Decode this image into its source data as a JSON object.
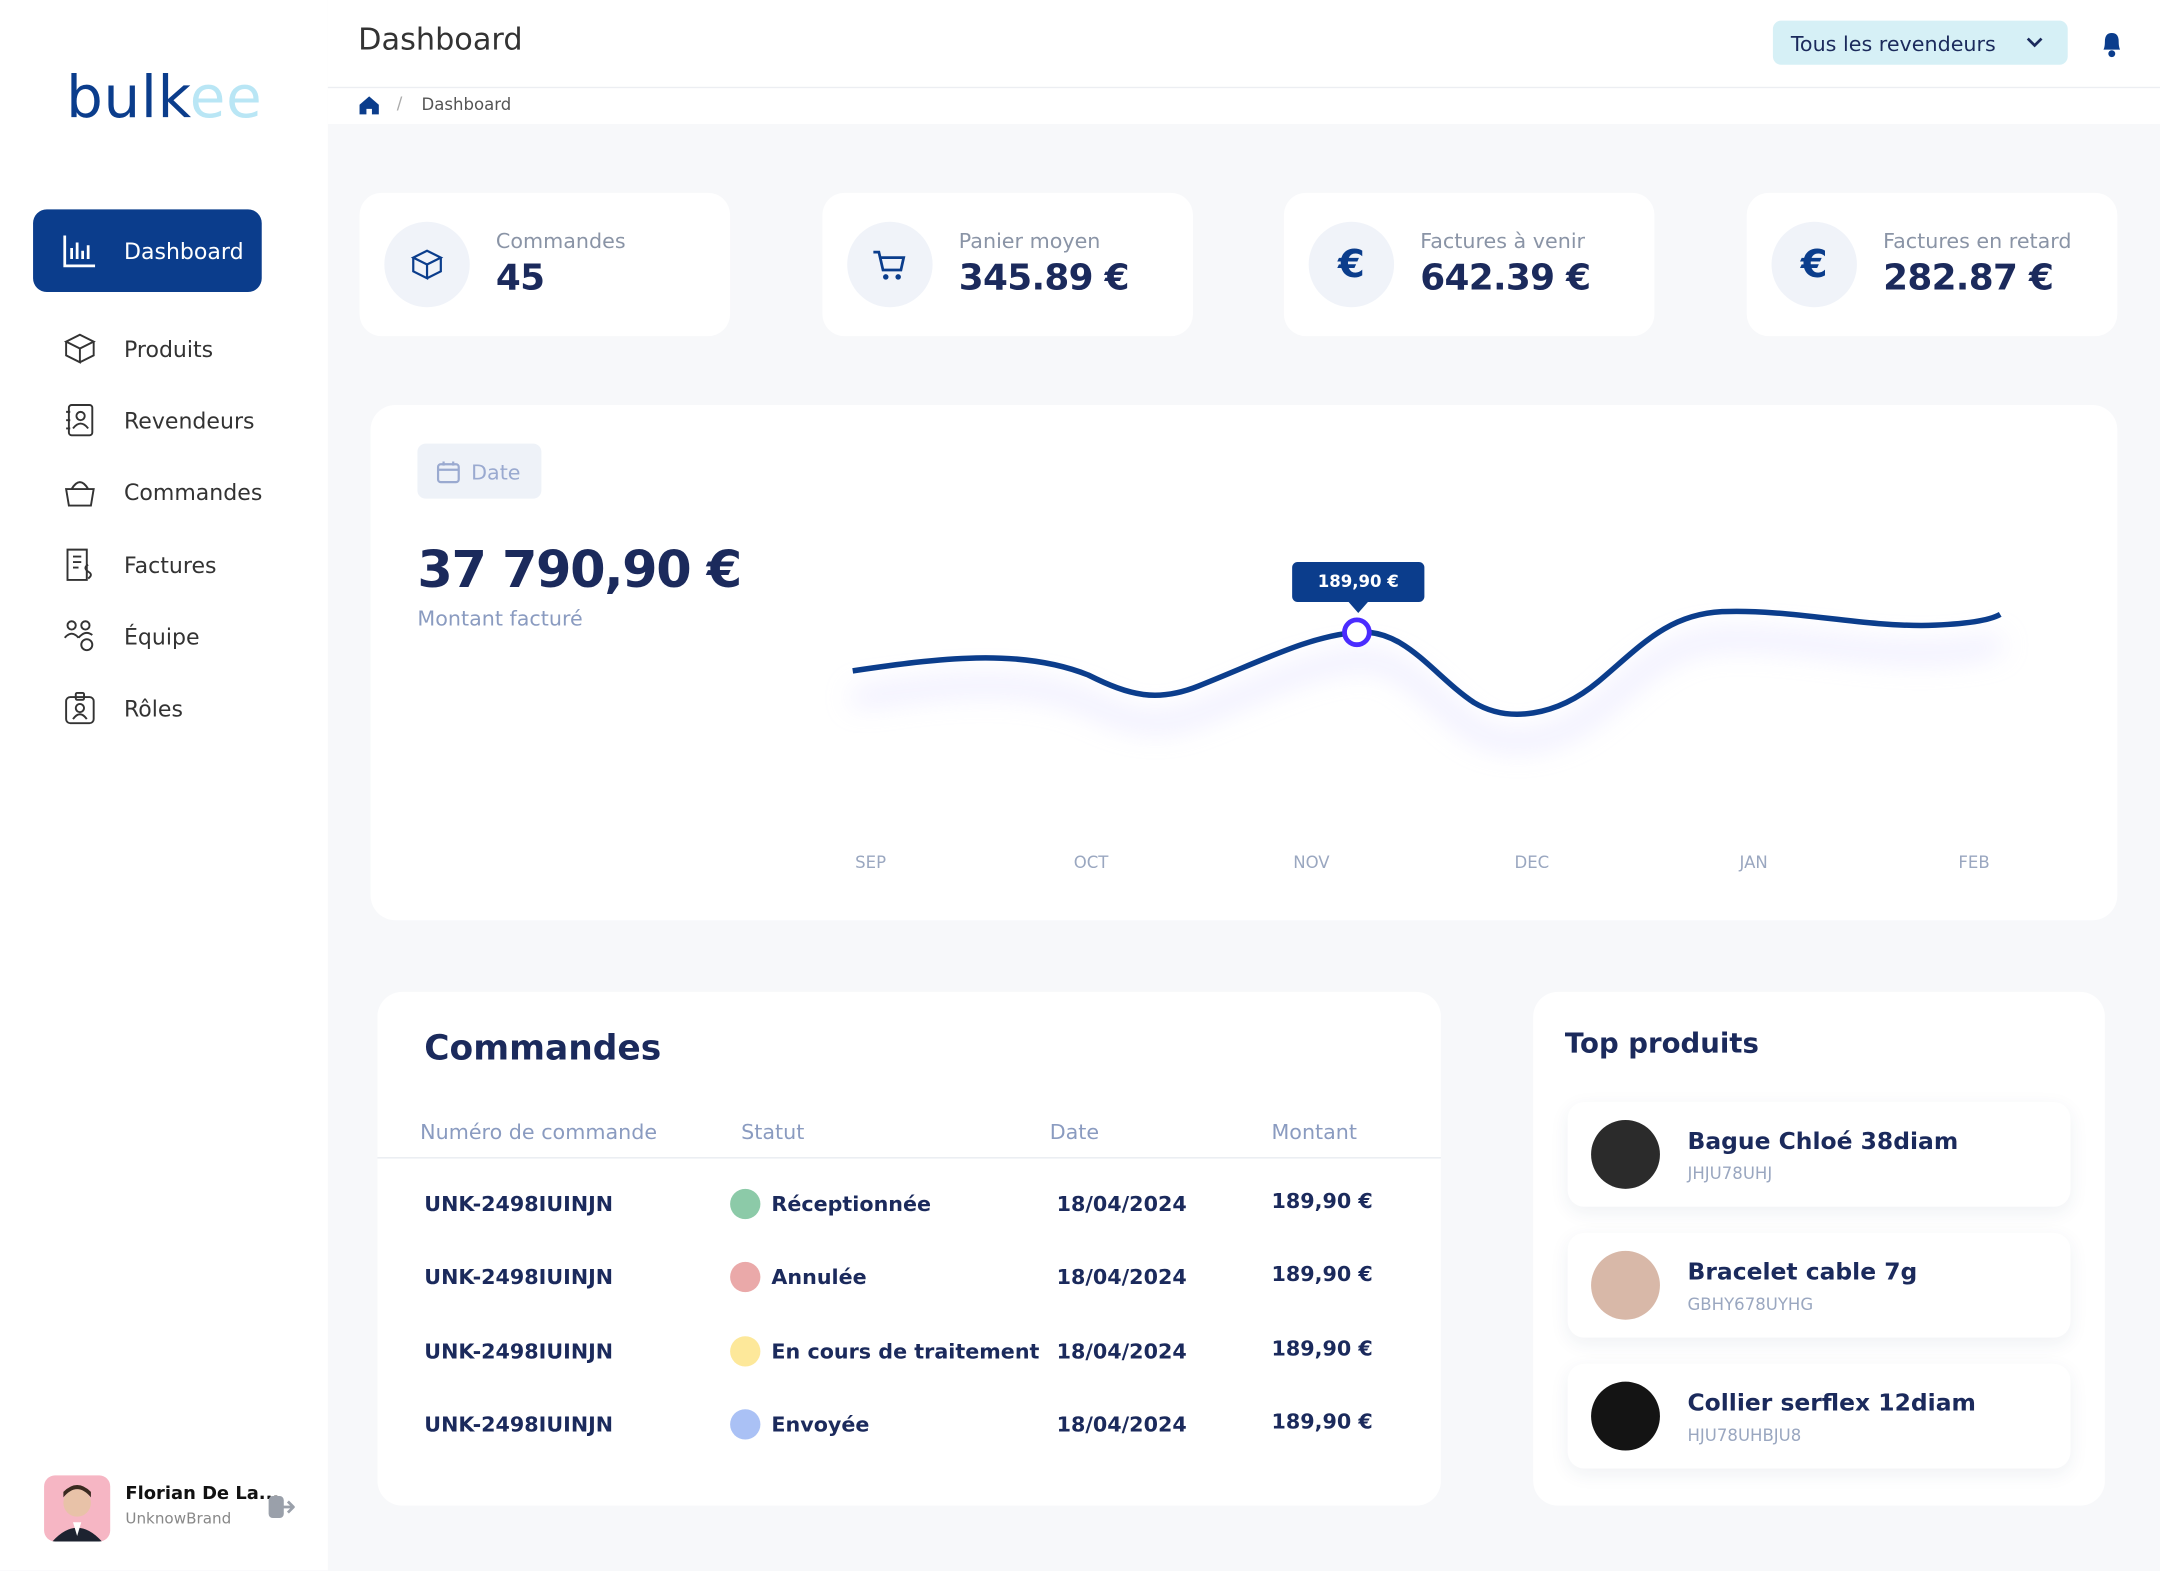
{
  "brand": {
    "part1": "bulk",
    "part2": "ee"
  },
  "header": {
    "title": "Dashboard",
    "reseller_select": "Tous les revendeurs",
    "breadcrumb": "Dashboard"
  },
  "nav": [
    "Dashboard",
    "Produits",
    "Revendeurs",
    "Commandes",
    "Factures",
    "Équipe",
    "Rôles"
  ],
  "user": {
    "name": "Florian De La...",
    "brand": "UnknowBrand"
  },
  "stats": [
    {
      "label": "Commandes",
      "value": "45"
    },
    {
      "label": "Panier moyen",
      "value": "345.89 €"
    },
    {
      "label": "Factures à venir",
      "value": "642.39 €"
    },
    {
      "label": "Factures en retard",
      "value": "282.87 €"
    }
  ],
  "chart": {
    "date_button": "Date",
    "total": "37 790,90 €",
    "subtitle": "Montant facturé",
    "months": [
      "SEP",
      "OCT",
      "NOV",
      "DEC",
      "JAN",
      "FEB"
    ],
    "tooltip": "189,90 €"
  },
  "orders": {
    "title": "Commandes",
    "columns": [
      "Numéro de commande",
      "Statut",
      "Date",
      "Montant"
    ],
    "rows": [
      {
        "id": "UNK-2498IUINJN",
        "status": "Réceptionnée",
        "status_color": "#8ccaa8",
        "date": "18/04/2024",
        "amount": "189,90 €"
      },
      {
        "id": "UNK-2498IUINJN",
        "status": "Annulée",
        "status_color": "#eaa9a9",
        "date": "18/04/2024",
        "amount": "189,90 €"
      },
      {
        "id": "UNK-2498IUINJN",
        "status": "En cours de traitement",
        "status_color": "#fde89a",
        "date": "18/04/2024",
        "amount": "189,90 €"
      },
      {
        "id": "UNK-2498IUINJN",
        "status": "Envoyée",
        "status_color": "#aac1f5",
        "date": "18/04/2024",
        "amount": "189,90 €"
      }
    ]
  },
  "top_products": {
    "title": "Top produits",
    "items": [
      {
        "name": "Bague Chloé 38diam",
        "sku": "JHJU78UHJ"
      },
      {
        "name": "Bracelet cable 7g",
        "sku": "GBHY678UYHG"
      },
      {
        "name": "Collier serflex 12diam",
        "sku": "HJU78UHBJU8"
      }
    ]
  }
}
